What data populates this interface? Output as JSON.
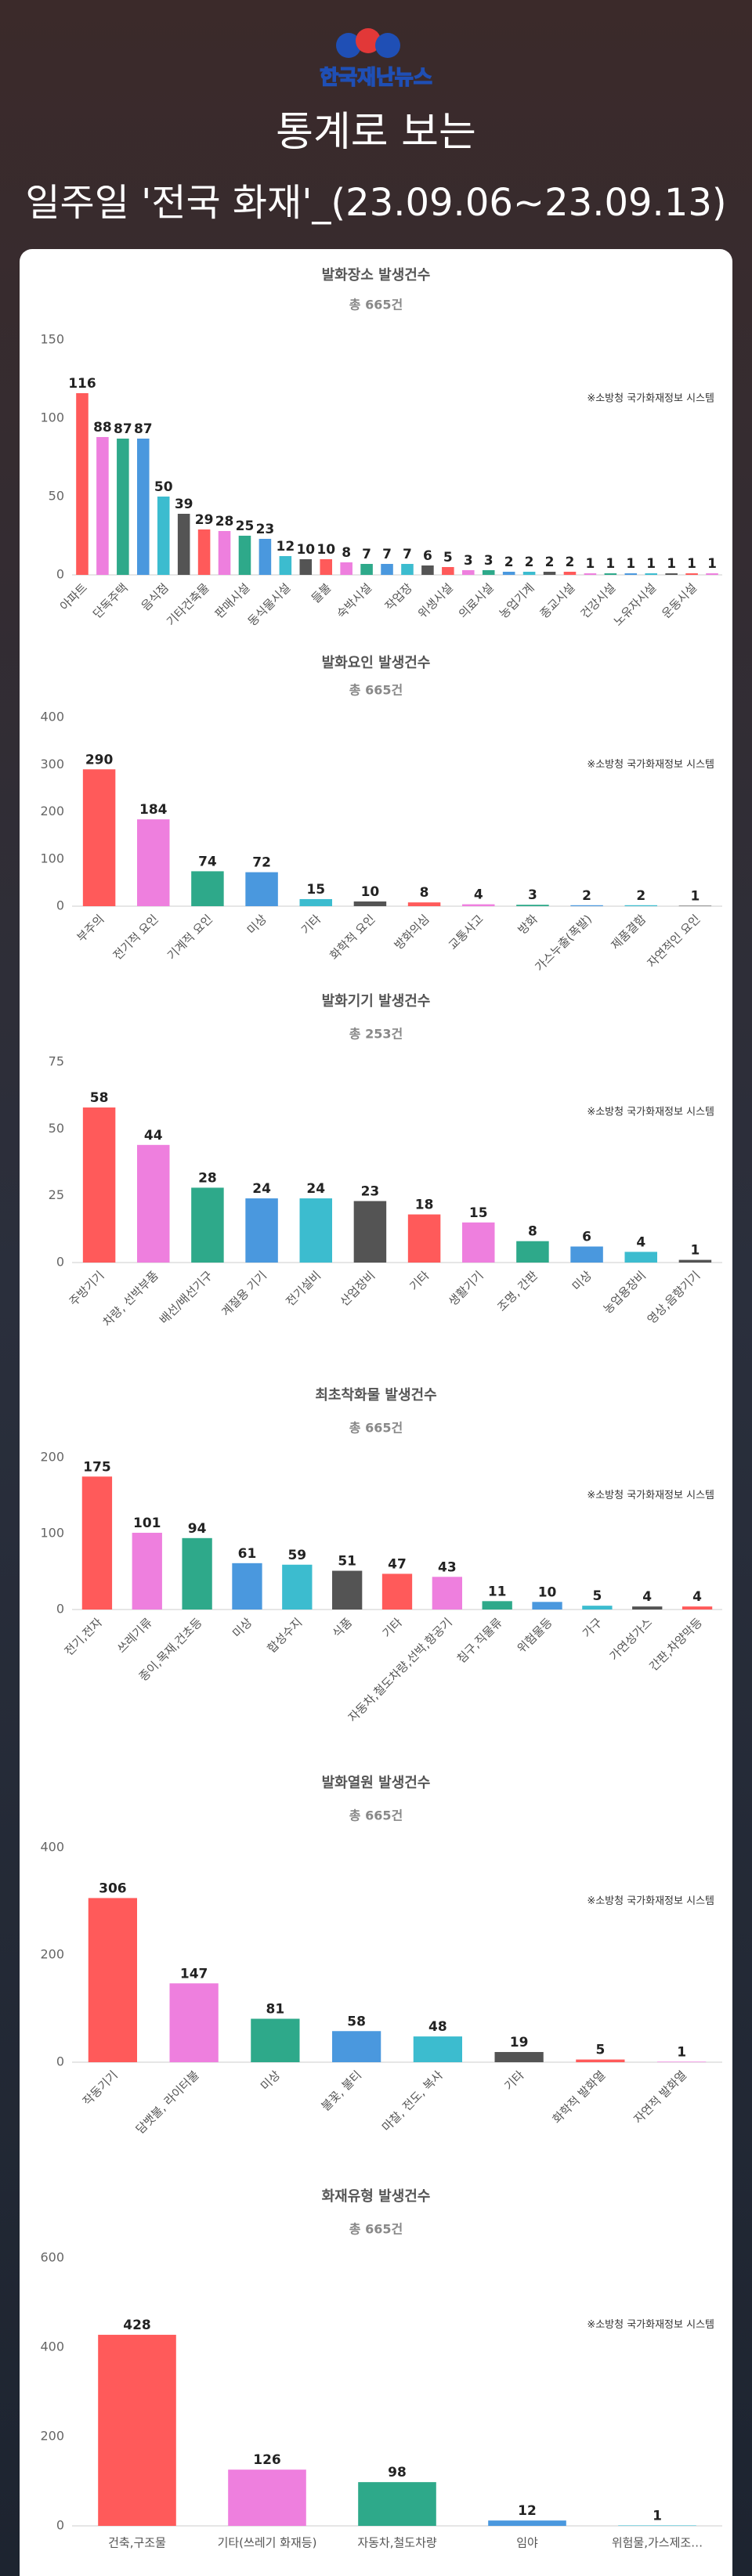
{
  "header": {
    "logo": "한국재난뉴스",
    "title_line1": "통계로 보는",
    "title_line2": "일주일 '전국 화재'_(23.09.06~23.09.13)"
  },
  "chart_data": [
    {
      "type": "bar",
      "title": "발화장소 발생건수",
      "subtitle": "총 665건",
      "note": "※소방청 국가화재정보 시스템",
      "categories": [
        "아파트",
        null,
        "단독주택",
        null,
        "음식점",
        null,
        "기타건축물",
        null,
        "판매시설",
        null,
        "동식물시설",
        null,
        "들불",
        null,
        "숙박시설",
        null,
        "작업장",
        null,
        "위생시설",
        null,
        "의료시설",
        null,
        "농업기계",
        null,
        "종교시설",
        null,
        "건강시설",
        null,
        "노유자시설",
        null,
        "운동시설",
        null
      ],
      "values": [
        116,
        88,
        87,
        87,
        50,
        39,
        29,
        28,
        25,
        23,
        12,
        10,
        10,
        8,
        7,
        7,
        7,
        6,
        5,
        3,
        3,
        2,
        2,
        2,
        2,
        1,
        1,
        1,
        1,
        1,
        1,
        1
      ],
      "ylim": [
        0,
        150
      ],
      "yticks": [
        0,
        50,
        100,
        150
      ],
      "grid": false,
      "colors": [
        "#ff5a5a",
        "#ee7fde",
        "#2ea98a",
        "#4a98de",
        "#3cbccf",
        "#545454"
      ]
    },
    {
      "type": "bar",
      "title": "발화요인 발생건수",
      "subtitle": "총 665건",
      "note": "※소방청 국가화재정보 시스템",
      "categories": [
        "부주의",
        "전기적 요인",
        "기계적 요인",
        "미상",
        "기타",
        "화학적 요인",
        "방화의심",
        "교통사고",
        "방화",
        "가스누출(폭발)",
        "제품결함",
        "자연적인 요인"
      ],
      "values": [
        290,
        184,
        74,
        72,
        15,
        10,
        8,
        4,
        3,
        2,
        2,
        1
      ],
      "ylim": [
        0,
        400
      ],
      "yticks": [
        0,
        100,
        200,
        300,
        400
      ],
      "grid": false,
      "colors": [
        "#ff5a5a",
        "#ee7fde",
        "#2ea98a",
        "#4a98de",
        "#3cbccf",
        "#545454"
      ]
    },
    {
      "type": "bar",
      "title": "발화기기 발생건수",
      "subtitle": "총 253건",
      "note": "※소방청 국가화재정보 시스템",
      "categories": [
        "주방기기",
        "차량, 선박부품",
        "배선/배선기구",
        "계절용 기기",
        "전기설비",
        "산업장비",
        "기타",
        "생활기기",
        "조명, 간판",
        "미상",
        "농업용장비",
        "영상,음향기기"
      ],
      "values": [
        58,
        44,
        28,
        24,
        24,
        23,
        18,
        15,
        8,
        6,
        4,
        1
      ],
      "ylim": [
        0,
        75
      ],
      "yticks": [
        0,
        25,
        50,
        75
      ],
      "grid": false,
      "colors": [
        "#ff5a5a",
        "#ee7fde",
        "#2ea98a",
        "#4a98de",
        "#3cbccf",
        "#545454"
      ]
    },
    {
      "type": "bar",
      "title": "최초착화물 발생건수",
      "subtitle": "총 665건",
      "note": "※소방청 국가화재정보 시스템",
      "categories": [
        "전기,전자",
        "쓰레기류",
        "종이,목재,건초등",
        "미상",
        "합성수지",
        "식품",
        "기타",
        "자동차,철도차량,선박,항공기",
        "침구,직물류",
        "위험물등",
        "가구",
        "가연성가스",
        "간판,차양막등"
      ],
      "values": [
        175,
        101,
        94,
        61,
        59,
        51,
        47,
        43,
        11,
        10,
        5,
        4,
        4
      ],
      "ylim": [
        0,
        200
      ],
      "yticks": [
        0,
        100,
        200
      ],
      "grid": false,
      "colors": [
        "#ff5a5a",
        "#ee7fde",
        "#2ea98a",
        "#4a98de",
        "#3cbccf",
        "#545454"
      ]
    },
    {
      "type": "bar",
      "title": "발화열원 발생건수",
      "subtitle": "총 665건",
      "note": "※소방청 국가화재정보 시스템",
      "categories": [
        "작동기기",
        "담뱃불, 라이터불",
        "미상",
        "불꽃, 불티",
        "마찰, 전도, 복사",
        "기타",
        "화학적 발화열",
        "자연적 발화열"
      ],
      "values": [
        306,
        147,
        81,
        58,
        48,
        19,
        5,
        1
      ],
      "ylim": [
        0,
        400
      ],
      "yticks": [
        0,
        200,
        400
      ],
      "grid": false,
      "colors": [
        "#ff5a5a",
        "#ee7fde",
        "#2ea98a",
        "#4a98de",
        "#3cbccf",
        "#545454"
      ]
    },
    {
      "type": "bar",
      "title": "화재유형 발생건수",
      "subtitle": "총 665건",
      "note": "※소방청 국가화재정보 시스템",
      "categories": [
        "건축,구조물",
        "기타(쓰레기 화재등)",
        "자동차,철도차량",
        "임야",
        "위험물,가스제조…"
      ],
      "values": [
        428,
        126,
        98,
        12,
        1
      ],
      "ylim": [
        0,
        600
      ],
      "yticks": [
        0,
        200,
        400,
        600
      ],
      "grid": false,
      "colors": [
        "#ff5a5a",
        "#ee7fde",
        "#2ea98a",
        "#4a98de",
        "#3cbccf",
        "#545454"
      ]
    }
  ]
}
